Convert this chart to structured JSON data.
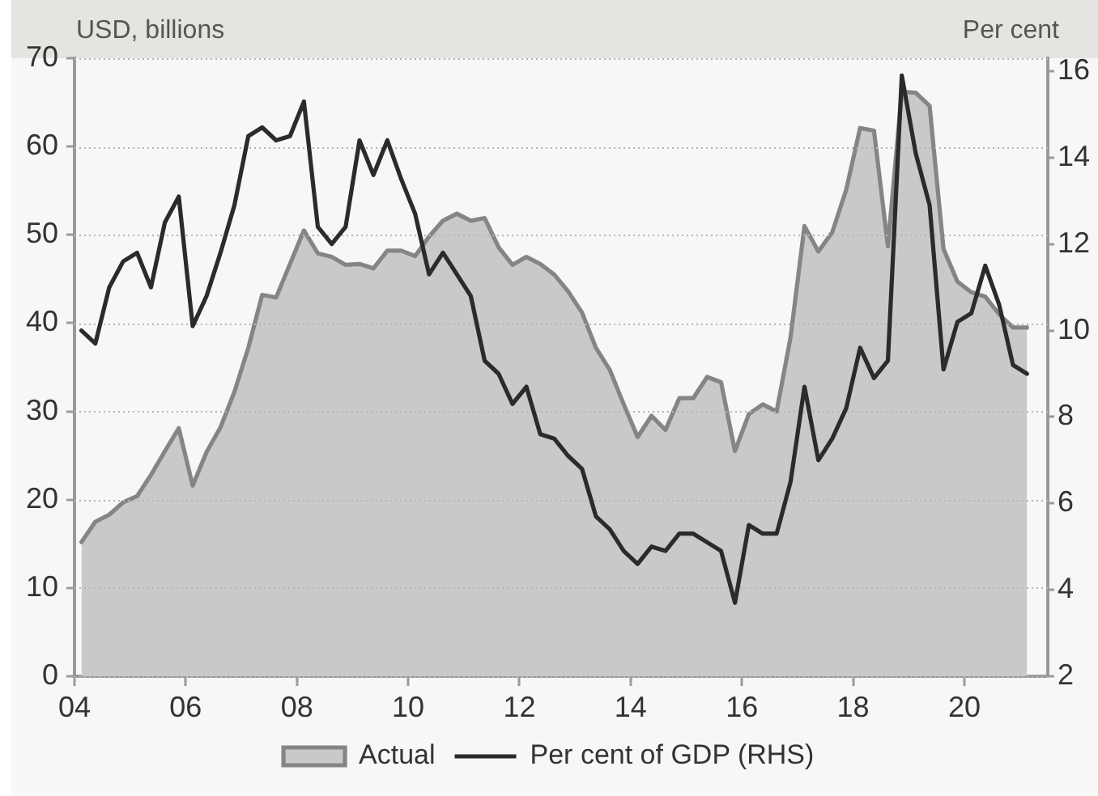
{
  "chart_data": {
    "type": "area",
    "ylabel": "USD, billions",
    "y2label": "Per cent",
    "x": [
      2004.125,
      2004.375,
      2004.625,
      2004.875,
      2005.125,
      2005.375,
      2005.625,
      2005.875,
      2006.125,
      2006.375,
      2006.625,
      2006.875,
      2007.125,
      2007.375,
      2007.625,
      2007.875,
      2008.125,
      2008.375,
      2008.625,
      2008.875,
      2009.125,
      2009.375,
      2009.625,
      2009.875,
      2010.125,
      2010.375,
      2010.625,
      2010.875,
      2011.125,
      2011.375,
      2011.625,
      2011.875,
      2012.125,
      2012.375,
      2012.625,
      2012.875,
      2013.125,
      2013.375,
      2013.625,
      2013.875,
      2014.125,
      2014.375,
      2014.625,
      2014.875,
      2015.125,
      2015.375,
      2015.625,
      2015.875,
      2016.125,
      2016.375,
      2016.625,
      2016.875,
      2017.125,
      2017.375,
      2017.625,
      2017.875,
      2018.125,
      2018.375,
      2018.625,
      2018.875,
      2019.125,
      2019.375,
      2019.625,
      2019.875,
      2020.125,
      2020.375,
      2020.625,
      2020.875,
      2021.125
    ],
    "series": [
      {
        "name": "Actual",
        "color": "#c9c9c9",
        "values": [
          15.2,
          17.5,
          18.3,
          19.7,
          20.4,
          22.8,
          25.5,
          28.1,
          21.6,
          25.4,
          28.2,
          32.2,
          37.2,
          43.2,
          42.9,
          46.7,
          50.5,
          47.9,
          47.5,
          46.6,
          46.7,
          46.2,
          48.2,
          48.2,
          47.6,
          49.8,
          51.6,
          52.4,
          51.6,
          51.9,
          48.6,
          46.6,
          47.5,
          46.7,
          45.5,
          43.6,
          41.2,
          37.2,
          34.7,
          30.8,
          27.1,
          29.5,
          27.9,
          31.5,
          31.5,
          33.9,
          33.3,
          25.5,
          29.7,
          30.8,
          30.0,
          38.4,
          51.0,
          48.1,
          50.3,
          55.1,
          62.1,
          61.8,
          48.7,
          66.2,
          66.1,
          64.6,
          48.4,
          44.7,
          43.5,
          43.0,
          41.0,
          39.5,
          39.5
        ]
      },
      {
        "name": "Per cent of GDP (RHS)",
        "type": "line",
        "axis": "y2",
        "color": "#2b2b2b",
        "values": [
          10.0,
          9.7,
          11.0,
          11.6,
          11.8,
          11.0,
          12.5,
          13.1,
          10.1,
          10.8,
          11.8,
          12.9,
          14.5,
          14.7,
          14.4,
          14.5,
          15.3,
          12.4,
          12.0,
          12.4,
          14.4,
          13.6,
          14.4,
          13.5,
          12.7,
          11.3,
          11.8,
          11.3,
          10.8,
          9.3,
          9.0,
          8.3,
          8.7,
          7.6,
          7.5,
          7.1,
          6.8,
          5.7,
          5.4,
          4.9,
          4.6,
          5.0,
          4.9,
          5.3,
          5.3,
          5.1,
          4.9,
          3.7,
          5.5,
          5.3,
          5.3,
          6.5,
          8.7,
          7.0,
          7.5,
          8.2,
          9.6,
          8.9,
          9.3,
          15.9,
          14.1,
          12.9,
          9.1,
          10.2,
          10.4,
          11.5,
          10.6,
          9.2,
          9.0
        ]
      }
    ],
    "xlim": [
      2004,
      2021.5
    ],
    "xticks": [
      {
        "value": 2004,
        "label": "04"
      },
      {
        "value": 2006,
        "label": "06"
      },
      {
        "value": 2008,
        "label": "08"
      },
      {
        "value": 2010,
        "label": "10"
      },
      {
        "value": 2012,
        "label": "12"
      },
      {
        "value": 2014,
        "label": "14"
      },
      {
        "value": 2016,
        "label": "16"
      },
      {
        "value": 2018,
        "label": "18"
      },
      {
        "value": 2020,
        "label": "20"
      }
    ],
    "ylim": [
      0,
      70
    ],
    "yticks": [
      0,
      10,
      20,
      30,
      40,
      50,
      60,
      70
    ],
    "y2lim": [
      2,
      16.3
    ],
    "y2ticks": [
      2,
      4,
      6,
      8,
      10,
      12,
      14,
      16
    ],
    "grid": "y",
    "legend": "bottom",
    "marker": "none"
  }
}
